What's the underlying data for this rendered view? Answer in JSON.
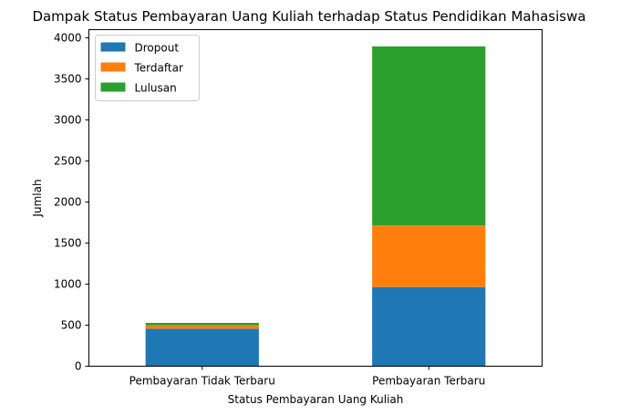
{
  "chart_data": {
    "type": "bar",
    "stacked": true,
    "title": "Dampak Status Pembayaran Uang Kuliah terhadap Status Pendidikan Mahasiswa",
    "xlabel": "Status Pembayaran Uang Kuliah",
    "ylabel": "Jumlah",
    "categories": [
      "Pembayaran Tidak Terbaru",
      "Pembayaran Terbaru"
    ],
    "series": [
      {
        "name": "Dropout",
        "color": "#1f77b4",
        "values": [
          457,
          964
        ]
      },
      {
        "name": "Terdaftar",
        "color": "#ff7f0e",
        "values": [
          42,
          752
        ]
      },
      {
        "name": "Lulusan",
        "color": "#2ca02c",
        "values": [
          29,
          2180
        ]
      }
    ],
    "ylim": [
      0,
      4100
    ],
    "yticks": [
      0,
      500,
      1000,
      1500,
      2000,
      2500,
      3000,
      3500,
      4000
    ],
    "grid": false,
    "legend_position": "top-left"
  }
}
